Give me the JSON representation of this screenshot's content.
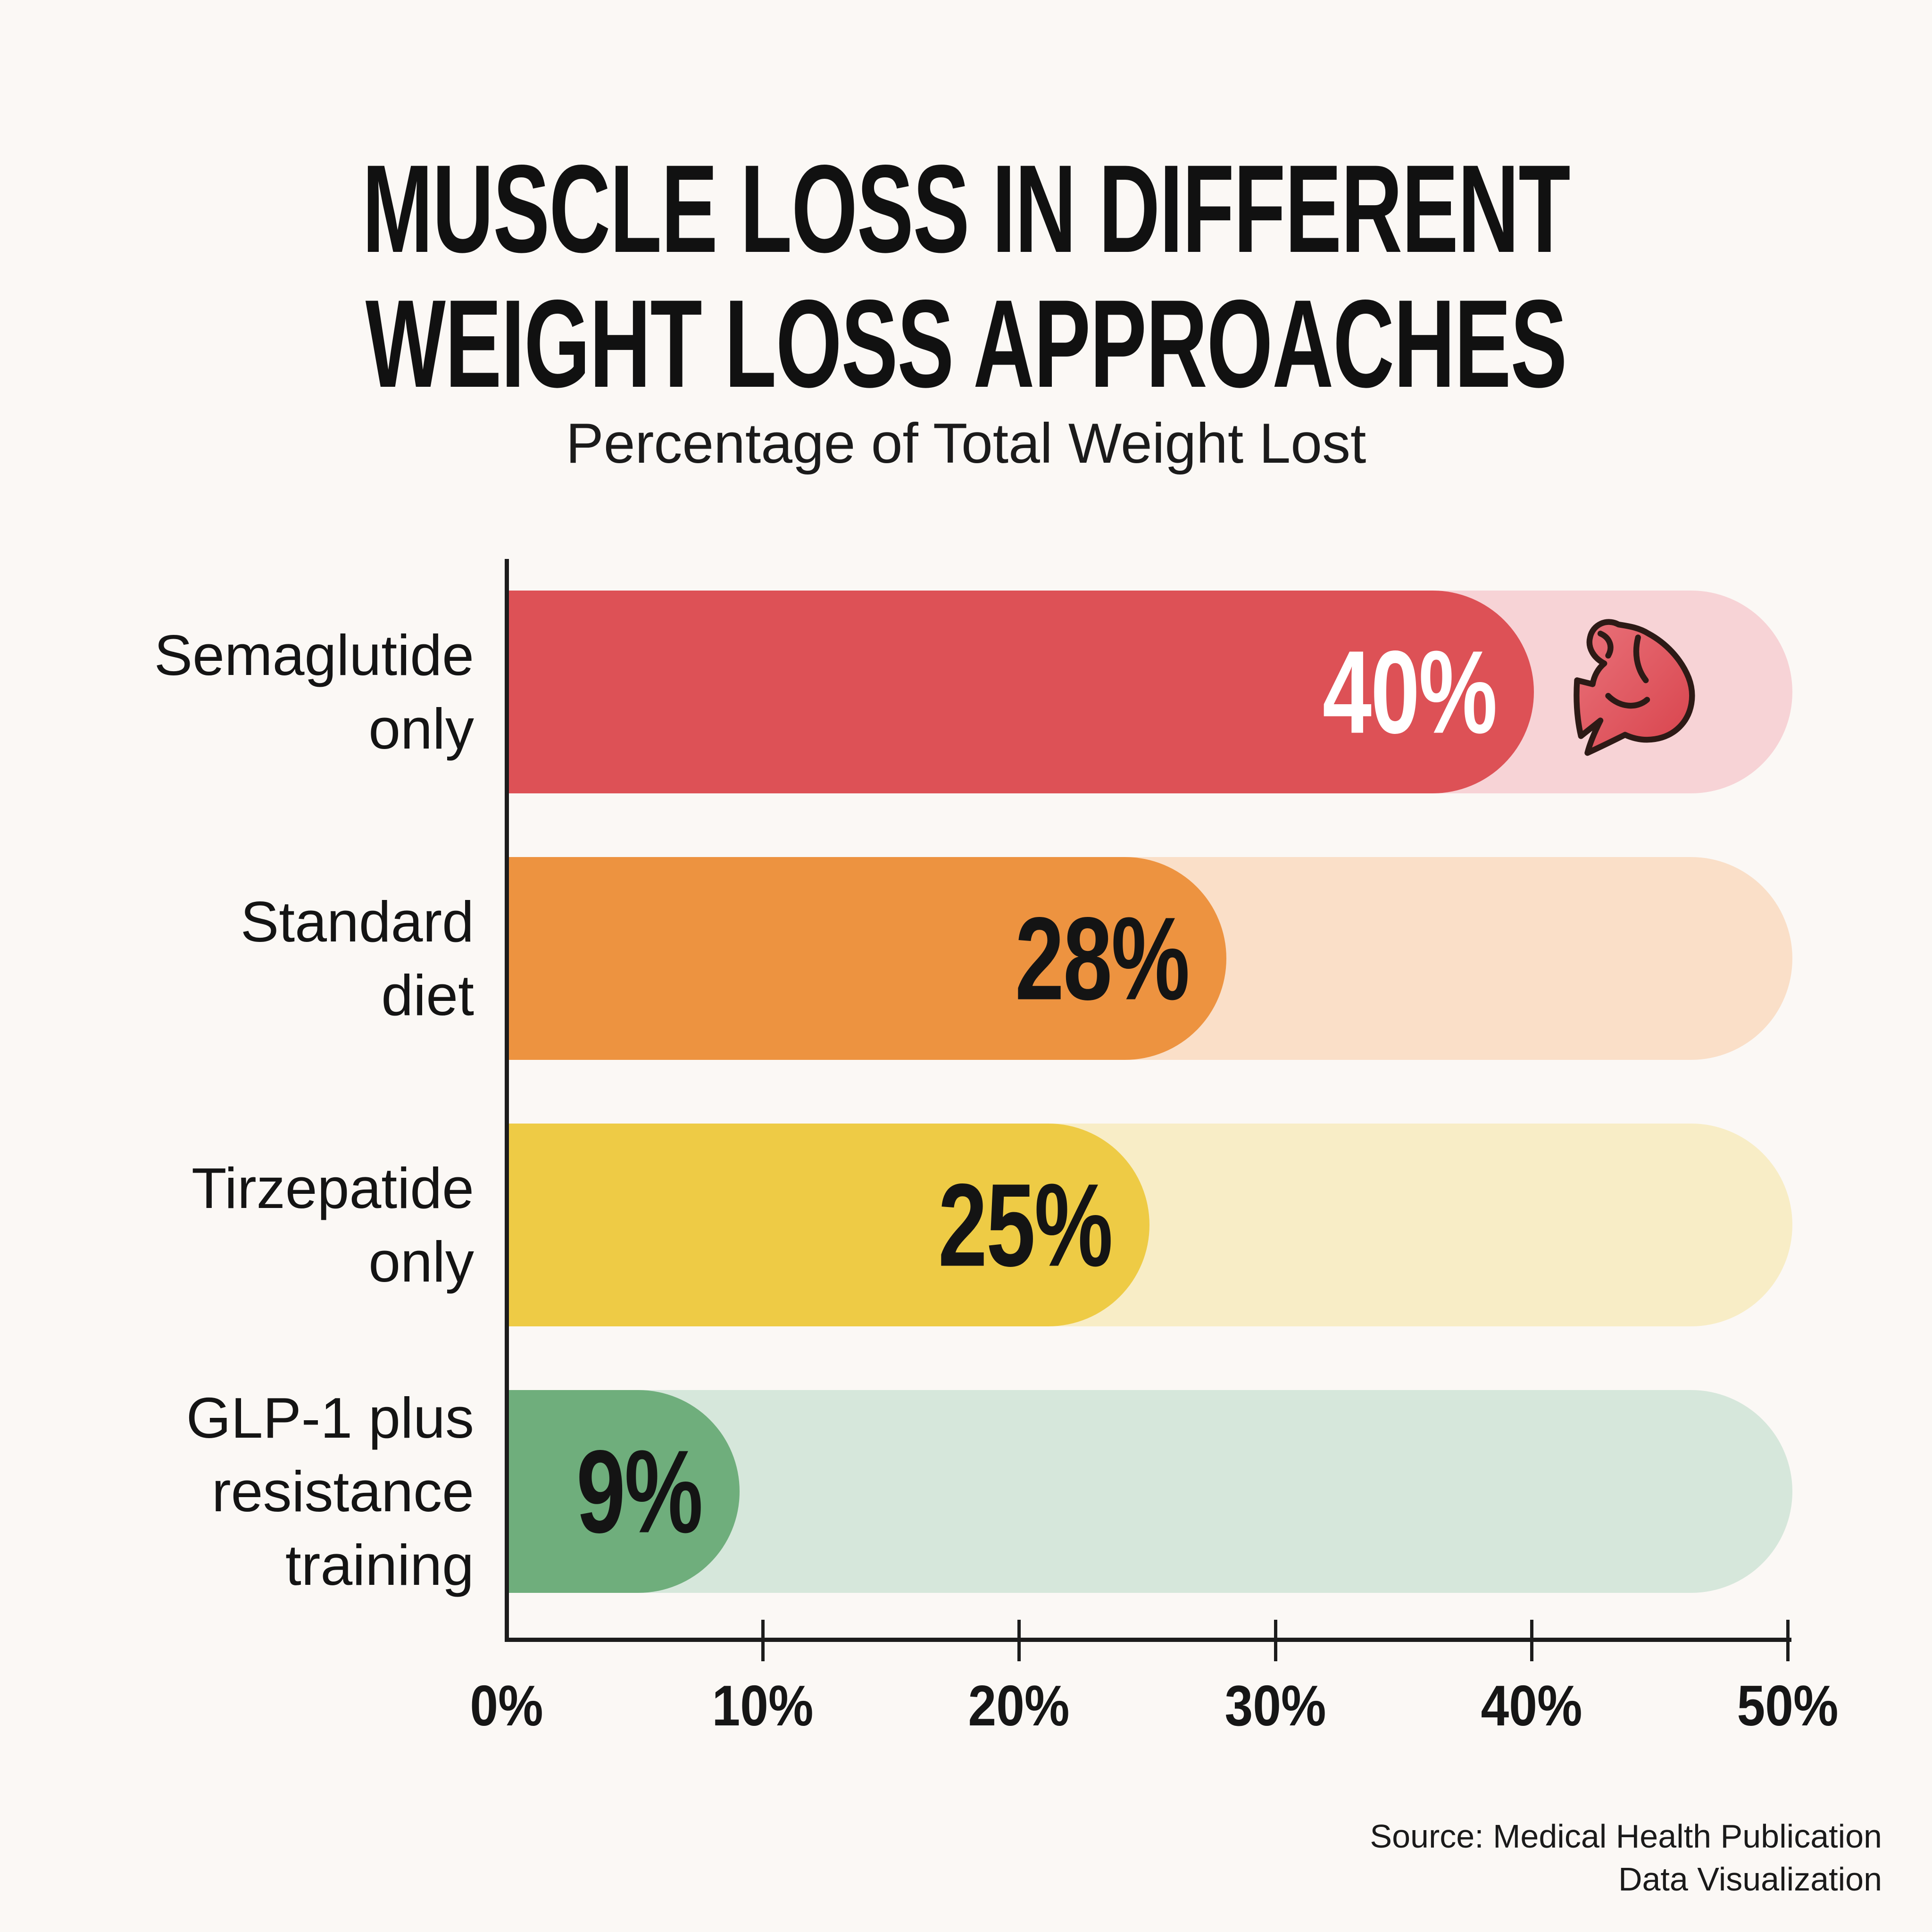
{
  "header": {
    "title_line1": "MUSCLE LOSS IN DIFFERENT",
    "title_line2": "WEIGHT LOSS APPROACHES",
    "subtitle": "Percentage of Total Weight Lost"
  },
  "footer": {
    "source_line1": "Source: Medical Health Publication",
    "source_line2": "Data Visualization"
  },
  "colors": {
    "background": "#fbf8f5",
    "axis": "#1c1c1c",
    "text": "#141414"
  },
  "chart_data": {
    "type": "bar",
    "orientation": "horizontal",
    "title": "MUSCLE LOSS IN DIFFERENT WEIGHT LOSS APPROACHES",
    "xlabel": "Percentage of Total Weight Lost",
    "ylabel": "",
    "grid": false,
    "legend_position": "none",
    "xlim": [
      0,
      50
    ],
    "x_ticks": [
      {
        "value": 0,
        "label": "0%"
      },
      {
        "value": 10,
        "label": "10%"
      },
      {
        "value": 20,
        "label": "20%"
      },
      {
        "value": 30,
        "label": "30%"
      },
      {
        "value": 40,
        "label": "40%"
      },
      {
        "value": 50,
        "label": "50%"
      }
    ],
    "categories": [
      "Semaglutide only",
      "Standard diet",
      "Tirzepatide only",
      "GLP-1 plus resistance training"
    ],
    "category_label_lines": [
      [
        "Semaglutide",
        "only"
      ],
      [
        "Standard",
        "diet"
      ],
      [
        "Tirzepatide",
        "only"
      ],
      [
        "GLP-1 plus",
        "resistance",
        "training"
      ]
    ],
    "values": [
      40,
      28,
      25,
      9
    ],
    "value_labels": [
      "40%",
      "28%",
      "25%",
      "9%"
    ],
    "bar_colors": [
      "#dd5156",
      "#ed9340",
      "#eecb45",
      "#6fae7c"
    ],
    "track_colors": [
      "#f7d3d6",
      "#fadfc8",
      "#f8edc6",
      "#d6e7db"
    ],
    "value_label_colors": [
      "#ffffff",
      "#141414",
      "#141414",
      "#141414"
    ],
    "annotations": [
      {
        "category_index": 0,
        "icon": "flexed-biceps-icon",
        "icon_color": "#dd5156",
        "icon_outline": "#2d1a16"
      }
    ]
  }
}
